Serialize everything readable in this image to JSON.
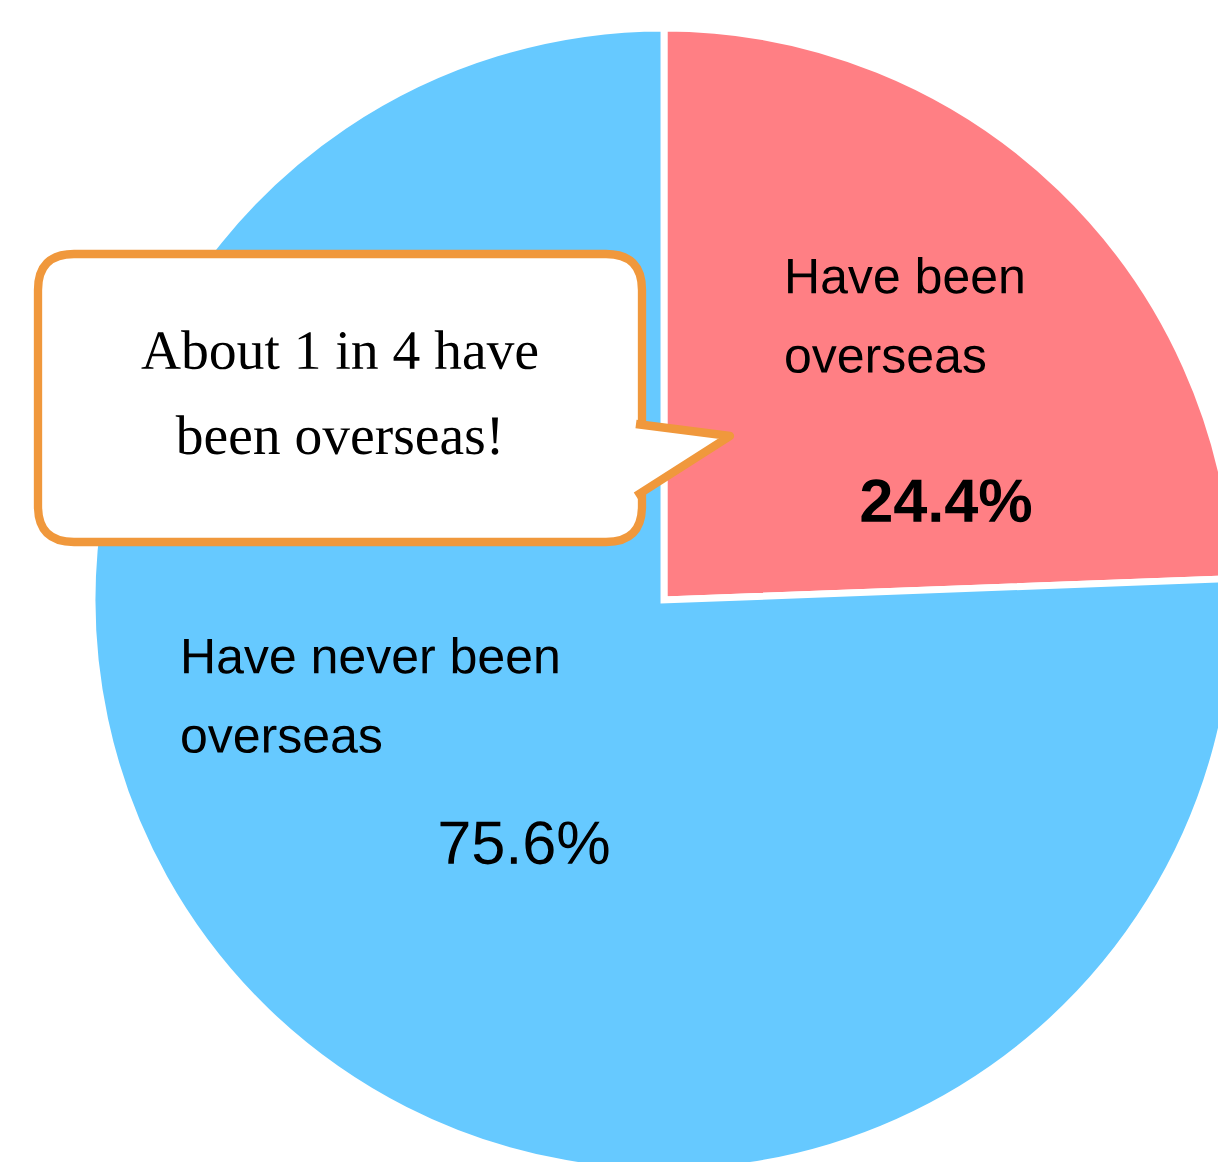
{
  "chart_data": {
    "type": "pie",
    "categories": [
      "Have been\noverseas",
      "Have never been\noverseas"
    ],
    "values": [
      24.4,
      75.6
    ],
    "colors": [
      "#ff7f84",
      "#66c9ff"
    ],
    "value_labels": [
      "24.4%",
      "75.6%"
    ],
    "annotations": [
      "About 1 in 4 have\nbeen overseas!"
    ]
  }
}
